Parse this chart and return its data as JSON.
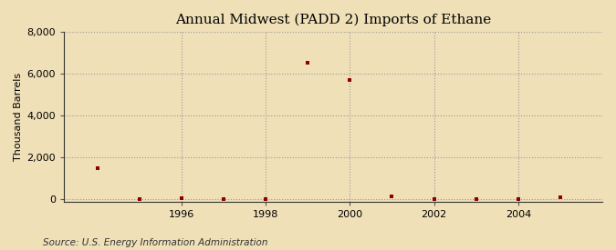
{
  "title": "Annual Midwest (PADD 2) Imports of Ethane",
  "ylabel": "Thousand Barrels",
  "source": "Source: U.S. Energy Information Administration",
  "background_color": "#f0e0b8",
  "plot_bg_color": "#f0e0b8",
  "grid_color": "#999999",
  "marker_color": "#8b0000",
  "years": [
    1994,
    1995,
    1996,
    1997,
    1998,
    1999,
    2000,
    2001,
    2002,
    2003,
    2004,
    2005
  ],
  "values": [
    1500,
    5,
    40,
    20,
    15,
    6500,
    5700,
    150,
    30,
    15,
    10,
    100
  ],
  "xlim": [
    1993.2,
    2006.0
  ],
  "ylim": [
    -100,
    8000
  ],
  "yticks": [
    0,
    2000,
    4000,
    6000,
    8000
  ],
  "xticks": [
    1996,
    1998,
    2000,
    2002,
    2004
  ],
  "title_fontsize": 11,
  "axis_fontsize": 8,
  "tick_fontsize": 8,
  "source_fontsize": 7.5
}
